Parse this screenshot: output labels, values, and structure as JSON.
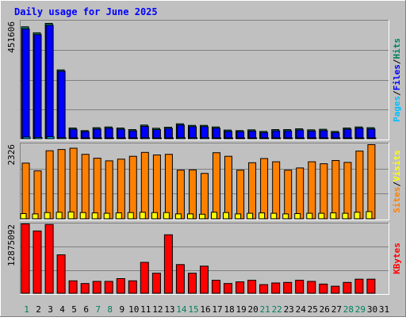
{
  "title": "Daily usage for June 2025",
  "colors": {
    "background": "#C0C0C0",
    "title": "#0000FF",
    "hits": "#00805C",
    "files": "#0000FF",
    "pages": "#00C0FF",
    "visits": "#FFFF00",
    "sites": "#FF8000",
    "kbytes": "#FF0000",
    "weekend_label": "#00805C",
    "weekday_label": "#000000"
  },
  "chart_data": [
    {
      "type": "bar",
      "panel": "hits-files-pages",
      "ymax_label": "451606",
      "ylim": [
        0,
        451606
      ],
      "legend": [
        {
          "text": "Pages",
          "color_key": "pages"
        },
        {
          "text": "/",
          "color_key": "weekday_label"
        },
        {
          "text": "Files",
          "color_key": "files"
        },
        {
          "text": "/",
          "color_key": "weekday_label"
        },
        {
          "text": "Hits",
          "color_key": "hits"
        }
      ],
      "categories": [
        "1",
        "2",
        "3",
        "4",
        "5",
        "6",
        "7",
        "8",
        "9",
        "10",
        "11",
        "12",
        "13",
        "14",
        "15",
        "16",
        "17",
        "18",
        "19",
        "20",
        "21",
        "22",
        "23",
        "24",
        "25",
        "26",
        "27",
        "28",
        "29",
        "30",
        "31"
      ],
      "series": [
        {
          "name": "Hits",
          "values": [
            428000,
            405000,
            441000,
            263000,
            41000,
            31000,
            42000,
            45000,
            41000,
            35000,
            52000,
            40000,
            44000,
            57000,
            51000,
            51000,
            45000,
            33000,
            31000,
            34000,
            28000,
            35000,
            35000,
            38000,
            34000,
            36000,
            28000,
            41000,
            45000,
            42000,
            0
          ]
        },
        {
          "name": "Files",
          "values": [
            420000,
            398000,
            434000,
            258000,
            36000,
            27000,
            37000,
            40000,
            36000,
            30000,
            47000,
            35000,
            39000,
            52000,
            46000,
            46000,
            40000,
            28000,
            27000,
            29000,
            23000,
            30000,
            30000,
            33000,
            29000,
            31000,
            23000,
            36000,
            40000,
            37000,
            0
          ]
        },
        {
          "name": "Pages",
          "values": [
            6000,
            5000,
            7000,
            4000,
            3000,
            2500,
            3000,
            3000,
            3000,
            2500,
            3500,
            3000,
            3000,
            4000,
            3500,
            3500,
            3000,
            2500,
            2500,
            2500,
            2000,
            2500,
            2500,
            3000,
            2500,
            2500,
            2000,
            3000,
            3000,
            3000,
            0
          ]
        }
      ]
    },
    {
      "type": "bar",
      "panel": "visits-sites",
      "ymax_label": "2326",
      "ylim": [
        0,
        2326
      ],
      "legend": [
        {
          "text": "Sites",
          "color_key": "sites"
        },
        {
          "text": "/",
          "color_key": "weekday_label"
        },
        {
          "text": "Visits",
          "color_key": "visits"
        }
      ],
      "categories": [
        "1",
        "2",
        "3",
        "4",
        "5",
        "6",
        "7",
        "8",
        "9",
        "10",
        "11",
        "12",
        "13",
        "14",
        "15",
        "16",
        "17",
        "18",
        "19",
        "20",
        "21",
        "22",
        "23",
        "24",
        "25",
        "26",
        "27",
        "28",
        "29",
        "30",
        "31"
      ],
      "series": [
        {
          "name": "Sites",
          "values": [
            1720,
            1480,
            2100,
            2140,
            2180,
            1990,
            1870,
            1790,
            1840,
            1930,
            2050,
            1970,
            1990,
            1500,
            1510,
            1400,
            2040,
            1930,
            1500,
            1730,
            1860,
            1760,
            1500,
            1570,
            1760,
            1700,
            1800,
            1740,
            2090,
            2290,
            0
          ]
        },
        {
          "name": "Visits",
          "values": [
            160,
            150,
            190,
            200,
            210,
            190,
            180,
            170,
            180,
            190,
            200,
            190,
            190,
            150,
            150,
            140,
            200,
            190,
            150,
            170,
            180,
            170,
            150,
            160,
            170,
            170,
            180,
            170,
            200,
            220,
            0
          ]
        }
      ]
    },
    {
      "type": "bar",
      "panel": "kbytes",
      "ymax_label": "12875092",
      "ylim": [
        0,
        12875092
      ],
      "legend": [
        {
          "text": "KBytes",
          "color_key": "kbytes"
        }
      ],
      "categories": [
        "1",
        "2",
        "3",
        "4",
        "5",
        "6",
        "7",
        "8",
        "9",
        "10",
        "11",
        "12",
        "13",
        "14",
        "15",
        "16",
        "17",
        "18",
        "19",
        "20",
        "21",
        "22",
        "23",
        "24",
        "25",
        "26",
        "27",
        "28",
        "29",
        "30",
        "31"
      ],
      "series": [
        {
          "name": "KBytes",
          "values": [
            12800000,
            11500000,
            12700000,
            7100000,
            2300000,
            1800000,
            2200000,
            2200000,
            2700000,
            2300000,
            5700000,
            3700000,
            10800000,
            5300000,
            3700000,
            5000000,
            2400000,
            1800000,
            2100000,
            2400000,
            1600000,
            1900000,
            2000000,
            2400000,
            2200000,
            1700000,
            1300000,
            2000000,
            2600000,
            2600000,
            0
          ]
        }
      ]
    }
  ],
  "x_axis": {
    "labels": [
      "1",
      "2",
      "3",
      "4",
      "5",
      "6",
      "7",
      "8",
      "9",
      "10",
      "11",
      "12",
      "13",
      "14",
      "15",
      "16",
      "17",
      "18",
      "19",
      "20",
      "21",
      "22",
      "23",
      "24",
      "25",
      "26",
      "27",
      "28",
      "29",
      "30",
      "31"
    ],
    "weekend_days": [
      "1",
      "7",
      "8",
      "14",
      "15",
      "21",
      "22",
      "28",
      "29"
    ]
  }
}
